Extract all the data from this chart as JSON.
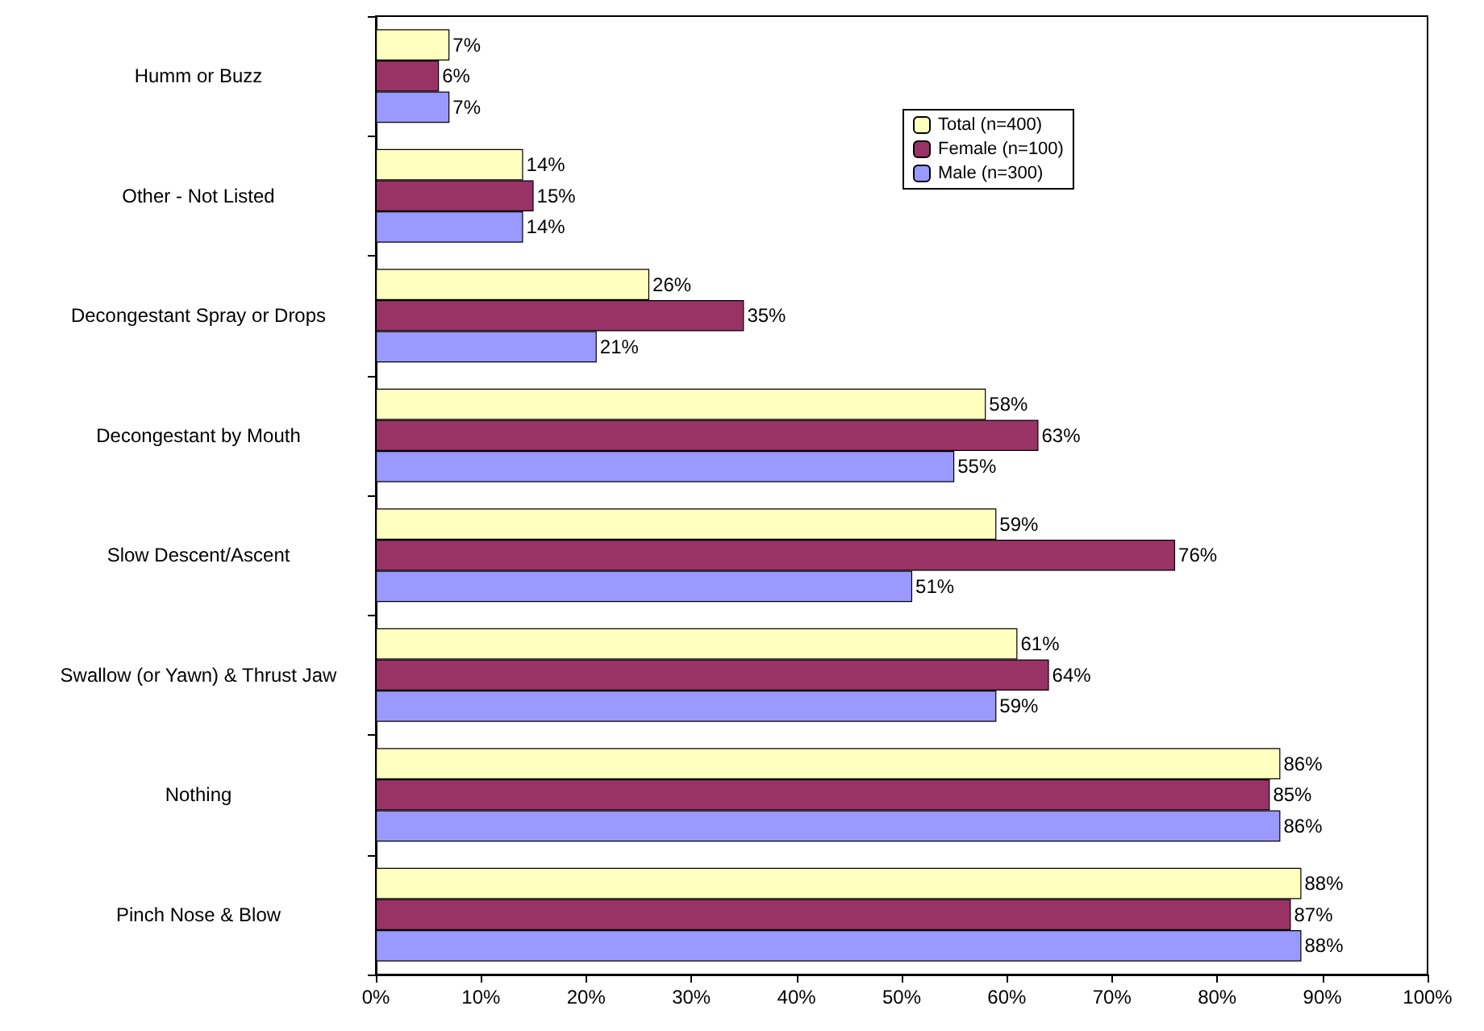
{
  "chart_data": {
    "type": "bar",
    "orientation": "horizontal",
    "categories": [
      "Humm or Buzz",
      "Other - Not Listed",
      "Decongestant Spray or Drops",
      "Decongestant by Mouth",
      "Slow Descent/Ascent",
      "Swallow (or Yawn) & Thrust Jaw",
      "Nothing",
      "Pinch Nose & Blow"
    ],
    "series": [
      {
        "name": "Total (n=400)",
        "color": "#ffffc0",
        "values": [
          7,
          14,
          26,
          58,
          59,
          61,
          86,
          88
        ],
        "value_labels": [
          "7%",
          "14%",
          "26%",
          "58%",
          "59%",
          "61%",
          "86%",
          "88%"
        ]
      },
      {
        "name": "Female (n=100)",
        "color": "#993366",
        "values": [
          6,
          15,
          35,
          63,
          76,
          64,
          85,
          87
        ],
        "value_labels": [
          "6%",
          "15%",
          "35%",
          "63%",
          "76%",
          "64%",
          "85%",
          "87%"
        ]
      },
      {
        "name": "Male (n=300)",
        "color": "#9999ff",
        "values": [
          7,
          14,
          21,
          55,
          51,
          59,
          86,
          88
        ],
        "value_labels": [
          "7%",
          "14%",
          "21%",
          "55%",
          "51%",
          "59%",
          "86%",
          "88%"
        ]
      }
    ],
    "xlim": [
      0,
      100
    ],
    "xticks": [
      {
        "value": 0,
        "label": "0%"
      },
      {
        "value": 10,
        "label": "10%"
      },
      {
        "value": 20,
        "label": "20%"
      },
      {
        "value": 30,
        "label": "30%"
      },
      {
        "value": 40,
        "label": "40%"
      },
      {
        "value": 50,
        "label": "50%"
      },
      {
        "value": 60,
        "label": "60%"
      },
      {
        "value": 70,
        "label": "70%"
      },
      {
        "value": 80,
        "label": "80%"
      },
      {
        "value": 90,
        "label": "90%"
      },
      {
        "value": 100,
        "label": "100%"
      }
    ],
    "grid": false,
    "legend": "top right"
  }
}
